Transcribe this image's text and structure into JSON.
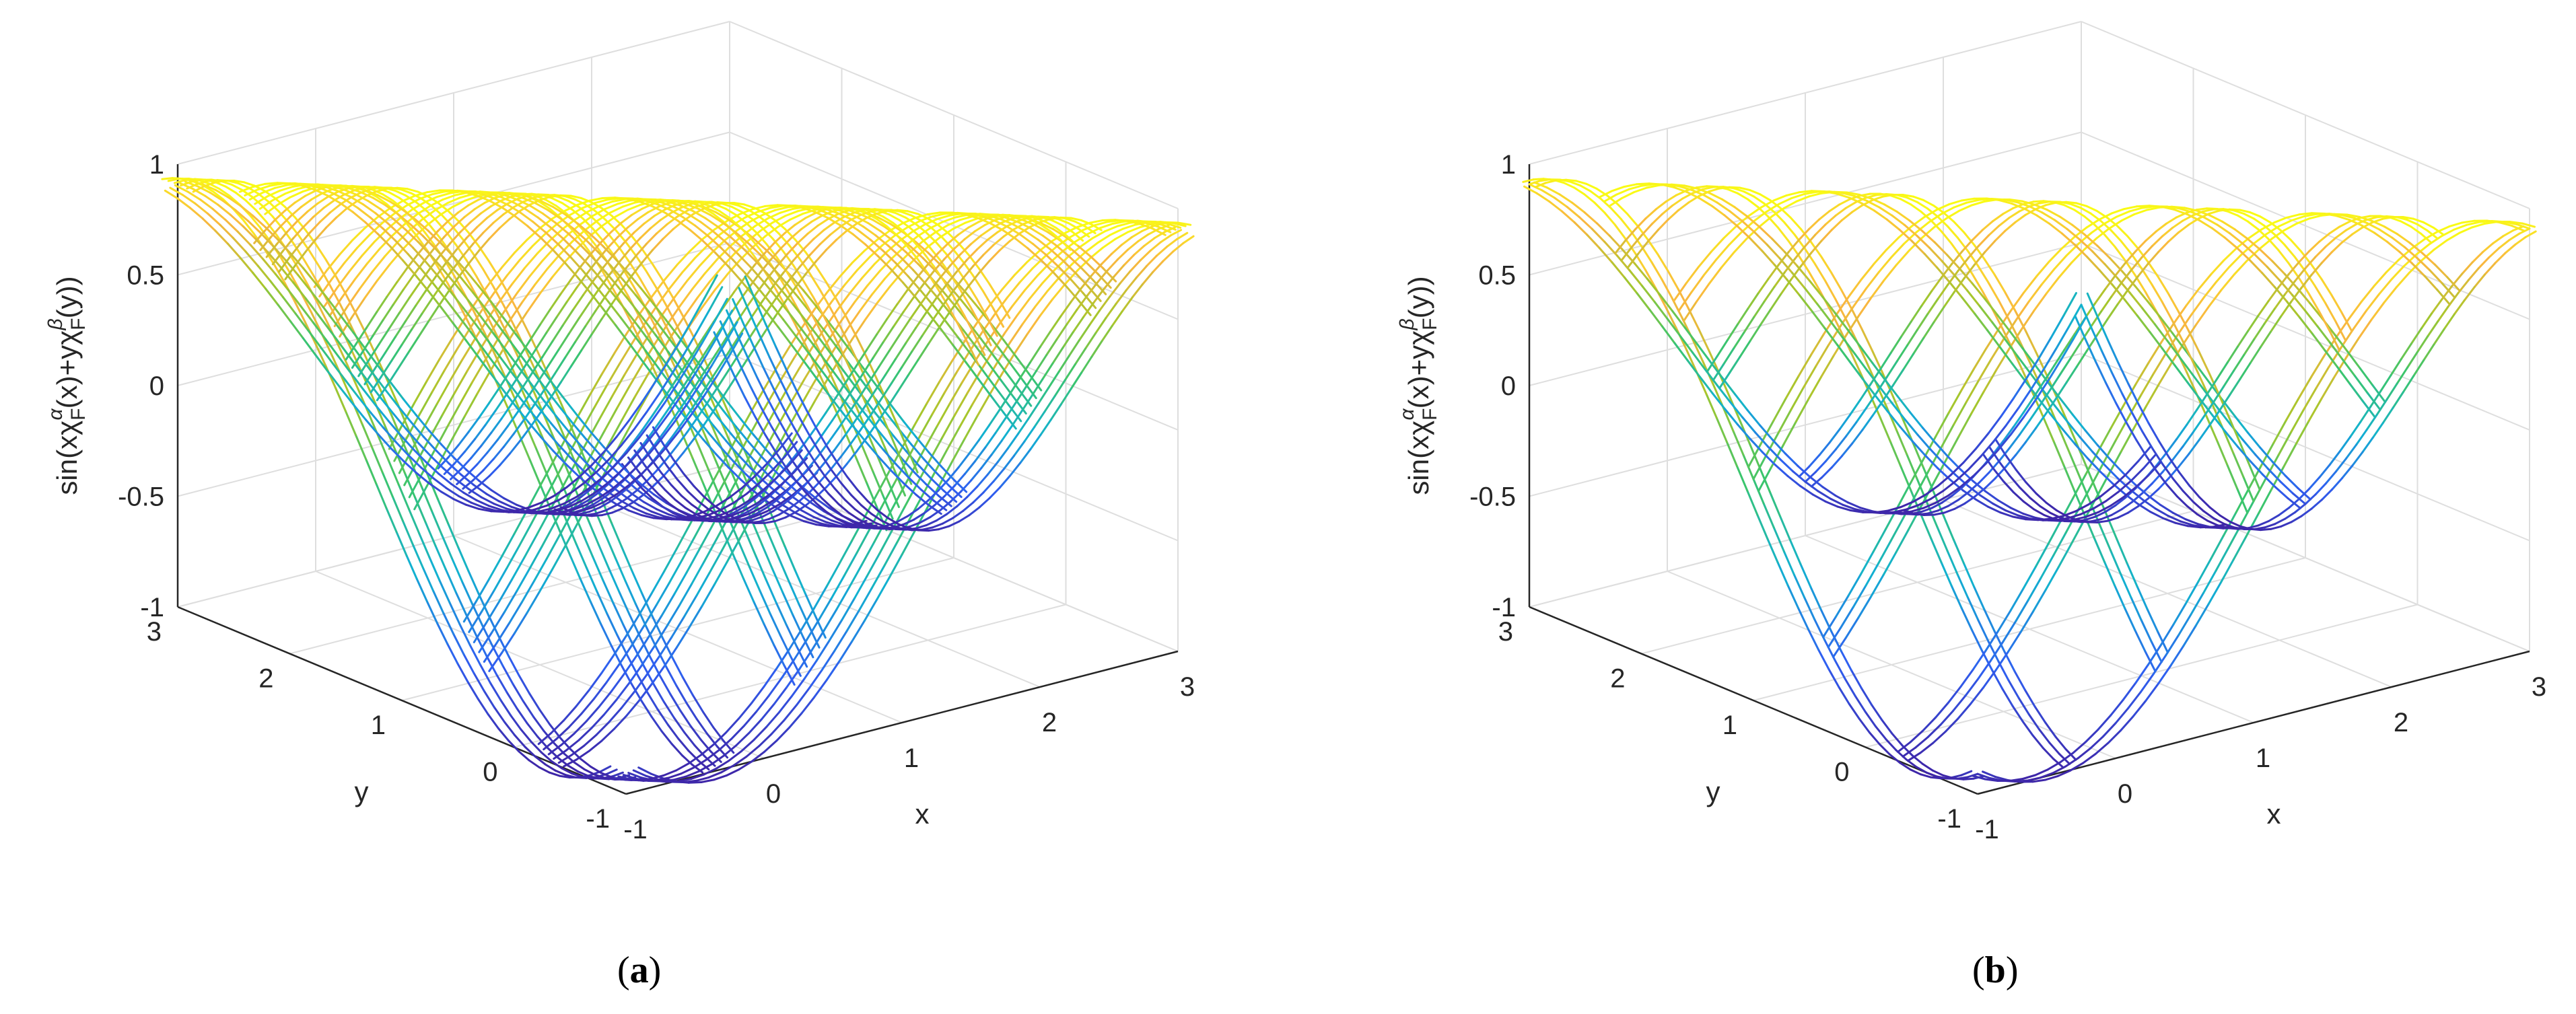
{
  "chart_data": [
    {
      "type": "surface-mesh-3d",
      "panel": "a",
      "panel_label": "a",
      "function": "sin(x·χF^α(x) + y·χF^β(y))",
      "zlabel_prefix": "sin(xχ",
      "zlabel_mid": "(x)+yχ",
      "zlabel_suffix": "(y))",
      "zlabel_sub": "F",
      "zlabel_sup1": "α",
      "zlabel_sup2": "β",
      "xlabel": "x",
      "ylabel": "y",
      "xlim": [
        -1,
        3
      ],
      "ylim": [
        -1,
        3
      ],
      "zlim": [
        -1,
        1
      ],
      "xticks": [
        "-1",
        "0",
        "1",
        "2",
        "3"
      ],
      "yticks": [
        "-1",
        "0",
        "1",
        "2",
        "3"
      ],
      "zticks": [
        "-1",
        "-0.5",
        "0",
        "0.5",
        "1"
      ],
      "fractal_mesh_lines": 6,
      "colormap": [
        "#3e26a8",
        "#2f5ff0",
        "#12b1d0",
        "#3bc56d",
        "#a7c62c",
        "#f9b73f",
        "#f9fb15"
      ]
    },
    {
      "type": "surface-mesh-3d",
      "panel": "b",
      "panel_label": "b",
      "function": "sin(x·χF^α(x) + y·χF^β(y))",
      "zlabel_prefix": "sin(xχ",
      "zlabel_mid": "(x)+yχ",
      "zlabel_suffix": "(y))",
      "zlabel_sub": "F",
      "zlabel_sup1": "α",
      "zlabel_sup2": "β",
      "xlabel": "x",
      "ylabel": "y",
      "xlim": [
        -1,
        3
      ],
      "ylim": [
        -1,
        3
      ],
      "zlim": [
        -1,
        1
      ],
      "xticks": [
        "-1",
        "0",
        "1",
        "2",
        "3"
      ],
      "yticks": [
        "-1",
        "0",
        "1",
        "2",
        "3"
      ],
      "zticks": [
        "-1",
        "-0.5",
        "0",
        "0.5",
        "1"
      ],
      "fractal_mesh_lines": 3,
      "colormap": [
        "#3e26a8",
        "#2f5ff0",
        "#12b1d0",
        "#3bc56d",
        "#a7c62c",
        "#f9b73f",
        "#f9fb15"
      ]
    }
  ]
}
